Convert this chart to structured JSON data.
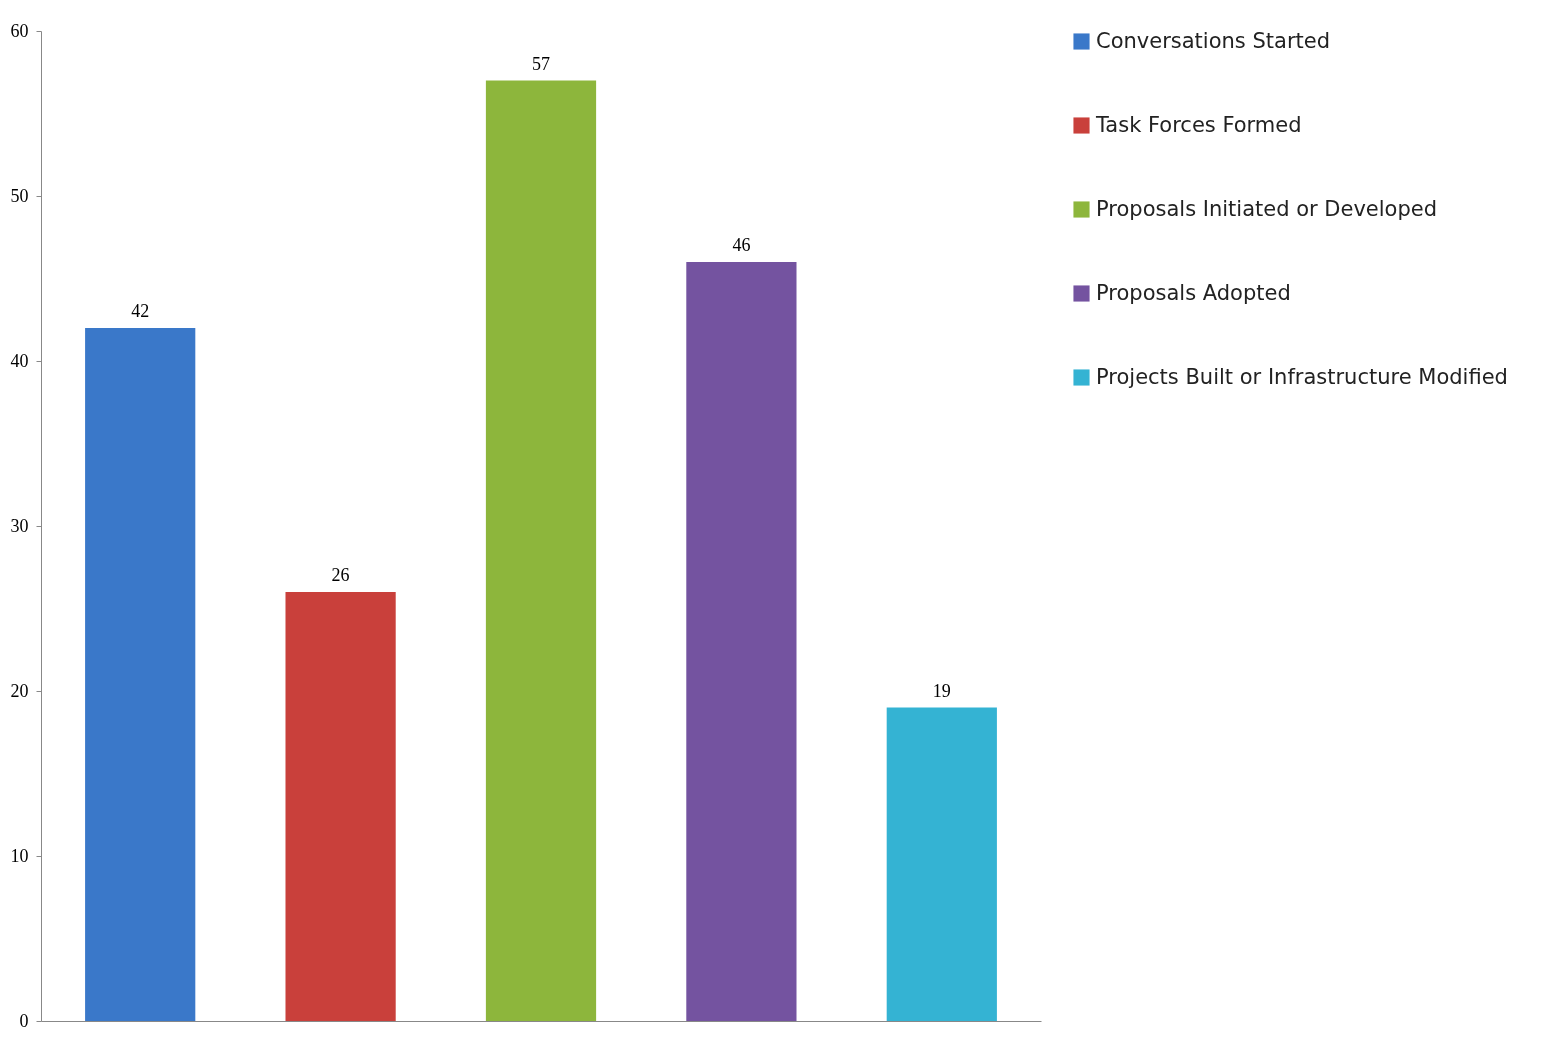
{
  "chart_data": {
    "type": "bar",
    "categories": [
      null,
      null,
      null,
      null,
      null
    ],
    "series": [
      {
        "name": "Conversations Started",
        "color": "#3a78c9",
        "values": [
          42,
          null,
          null,
          null,
          null
        ]
      },
      {
        "name": "Task Forces Formed",
        "color": "#c9403b",
        "values": [
          null,
          26,
          null,
          null,
          null
        ]
      },
      {
        "name": "Proposals Initiated or Developed",
        "color": "#8db63c",
        "values": [
          null,
          null,
          57,
          null,
          null
        ]
      },
      {
        "name": "Proposals Adopted",
        "color": "#7453a0",
        "values": [
          null,
          null,
          null,
          46,
          null
        ]
      },
      {
        "name": "Projects Built or Infrastructure Modified",
        "color": "#34b3d3",
        "values": [
          null,
          null,
          null,
          null,
          19
        ]
      }
    ],
    "ylim": [
      0,
      60
    ],
    "yticks": [
      0,
      10,
      20,
      30,
      40,
      50,
      60
    ],
    "grid": false,
    "legend": "right",
    "data_labels": true,
    "tick_labels": "y"
  }
}
